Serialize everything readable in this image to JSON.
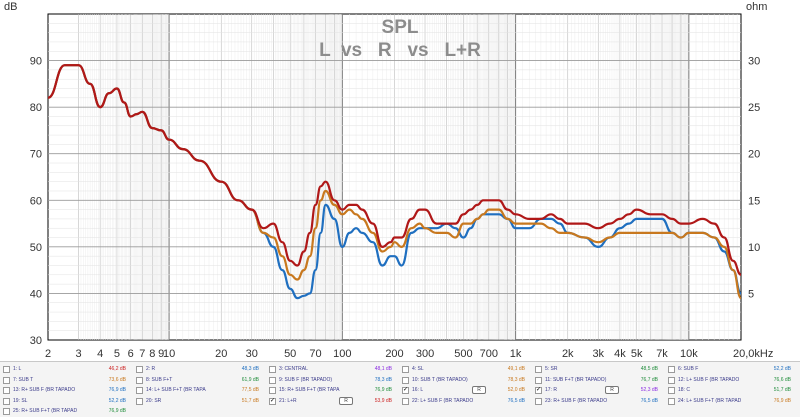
{
  "chart_data": {
    "type": "line",
    "title": "SPL",
    "subtitle": "L  vs   R   vs   L+R",
    "y_left_unit": "dB",
    "y_right_unit": "ohm",
    "x_scale": "log",
    "xlim": [
      2,
      20000
    ],
    "ylim": [
      30,
      100
    ],
    "y_right_lim": [
      0,
      35
    ],
    "grid": true,
    "x_tick_labels": [
      {
        "v": 2,
        "t": "2"
      },
      {
        "v": 3,
        "t": "3"
      },
      {
        "v": 4,
        "t": "4"
      },
      {
        "v": 5,
        "t": "5"
      },
      {
        "v": 6,
        "t": "6"
      },
      {
        "v": 7,
        "t": "7"
      },
      {
        "v": 8,
        "t": "8"
      },
      {
        "v": 9,
        "t": "9"
      },
      {
        "v": 10,
        "t": "10"
      },
      {
        "v": 20,
        "t": "20"
      },
      {
        "v": 30,
        "t": "30"
      },
      {
        "v": 50,
        "t": "50"
      },
      {
        "v": 70,
        "t": "70"
      },
      {
        "v": 100,
        "t": "100"
      },
      {
        "v": 200,
        "t": "200"
      },
      {
        "v": 300,
        "t": "300"
      },
      {
        "v": 500,
        "t": "500"
      },
      {
        "v": 700,
        "t": "700"
      },
      {
        "v": 1000,
        "t": "1k"
      },
      {
        "v": 2000,
        "t": "2k"
      },
      {
        "v": 3000,
        "t": "3k"
      },
      {
        "v": 4000,
        "t": "4k"
      },
      {
        "v": 5000,
        "t": "5k"
      },
      {
        "v": 7000,
        "t": "7k"
      },
      {
        "v": 10000,
        "t": "10k"
      },
      {
        "v": 20000,
        "t": "20,0kHz"
      }
    ],
    "y_left_ticks": [
      40,
      50,
      60,
      70,
      80,
      90
    ],
    "y_right_ticks": [
      5,
      10,
      15,
      20,
      25,
      30
    ],
    "series": [
      {
        "color": "#1f6fc0",
        "x": [
          2,
          2.5,
          3,
          3.5,
          4,
          4.5,
          5,
          5.5,
          6,
          6.5,
          7,
          8,
          9,
          10,
          12,
          15,
          20,
          25,
          30,
          35,
          40,
          45,
          50,
          55,
          60,
          65,
          70,
          75,
          80,
          90,
          100,
          110,
          120,
          130,
          150,
          170,
          190,
          200,
          220,
          250,
          280,
          300,
          350,
          400,
          450,
          500,
          550,
          600,
          650,
          700,
          800,
          900,
          1000,
          1200,
          1400,
          1600,
          1800,
          2000,
          2500,
          3000,
          3500,
          4000,
          4500,
          5000,
          6000,
          7000,
          8000,
          9000,
          10000,
          12000,
          14000,
          16000,
          18000,
          20000
        ],
        "y": [
          82,
          89,
          89,
          85,
          80,
          83,
          84,
          81,
          78,
          78.5,
          79,
          75.5,
          75,
          73,
          71,
          68.5,
          64,
          60,
          58,
          53,
          50,
          45,
          41,
          39,
          39.5,
          40,
          45,
          53,
          59,
          56,
          50,
          53,
          54,
          53,
          51,
          46,
          48,
          48,
          46,
          53,
          54,
          54,
          54,
          55,
          54,
          52,
          54,
          56,
          57,
          57,
          57,
          56,
          54,
          54,
          56,
          56,
          55,
          53,
          52,
          50,
          52,
          54,
          55,
          56,
          56,
          56,
          53,
          52,
          53,
          53,
          52,
          49,
          45,
          40
        ]
      },
      {
        "color": "#c8781e",
        "x": [
          2,
          2.5,
          3,
          3.5,
          4,
          4.5,
          5,
          5.5,
          6,
          6.5,
          7,
          8,
          9,
          10,
          12,
          15,
          20,
          25,
          30,
          35,
          40,
          45,
          50,
          55,
          60,
          65,
          70,
          75,
          80,
          90,
          100,
          110,
          120,
          130,
          150,
          170,
          190,
          200,
          220,
          250,
          280,
          300,
          350,
          400,
          450,
          500,
          550,
          600,
          650,
          700,
          800,
          900,
          1000,
          1200,
          1400,
          1600,
          1800,
          2000,
          2500,
          3000,
          3500,
          4000,
          4500,
          5000,
          6000,
          7000,
          8000,
          9000,
          10000,
          12000,
          14000,
          16000,
          18000,
          20000
        ],
        "y": [
          82,
          89,
          89,
          85,
          80,
          83,
          84,
          81,
          78,
          78.5,
          79,
          75.5,
          75,
          73,
          71,
          68.5,
          64,
          60,
          58,
          53,
          52,
          48,
          44,
          43,
          45,
          48,
          54,
          60,
          62,
          59,
          57,
          58,
          57,
          56,
          53,
          49,
          50,
          51,
          50,
          54,
          55,
          54,
          53,
          53,
          52,
          55,
          55,
          56,
          57,
          58,
          58,
          56,
          55,
          55,
          55,
          54,
          53,
          53,
          52,
          51,
          52,
          53,
          53,
          53,
          53,
          53,
          53,
          52,
          53,
          53,
          52,
          50,
          45,
          39
        ]
      },
      {
        "color": "#b01818",
        "x": [
          2,
          2.5,
          3,
          3.5,
          4,
          4.5,
          5,
          5.5,
          6,
          6.5,
          7,
          8,
          9,
          10,
          12,
          15,
          20,
          25,
          30,
          35,
          40,
          45,
          50,
          55,
          60,
          65,
          70,
          75,
          80,
          90,
          100,
          110,
          120,
          130,
          150,
          170,
          190,
          200,
          220,
          250,
          280,
          300,
          350,
          400,
          450,
          500,
          550,
          600,
          650,
          700,
          800,
          900,
          1000,
          1200,
          1400,
          1600,
          1800,
          2000,
          2500,
          3000,
          3500,
          4000,
          4500,
          5000,
          6000,
          7000,
          8000,
          9000,
          10000,
          12000,
          14000,
          16000,
          18000,
          20000
        ],
        "y": [
          82,
          89,
          89,
          85,
          80,
          83,
          84,
          81,
          78,
          78.5,
          79,
          75.5,
          75,
          73,
          71,
          68.5,
          64,
          60,
          58,
          54,
          55,
          51,
          47,
          46,
          49,
          53,
          59,
          63,
          64,
          60,
          58,
          59,
          59,
          58,
          55,
          50,
          51,
          52,
          52,
          56,
          58,
          58,
          55,
          55,
          55,
          57,
          58,
          59,
          60,
          60,
          60,
          58,
          57,
          56,
          56,
          57,
          56,
          55,
          55,
          54,
          55,
          56,
          57,
          58,
          57,
          57,
          56,
          55,
          55,
          56,
          55,
          52,
          47,
          44
        ]
      }
    ]
  },
  "legend": {
    "items": [
      {
        "label": "1: L",
        "value": "46,2 dB",
        "color": "#cc2222",
        "checked": false
      },
      {
        "label": "2: R",
        "value": "48,3 dB",
        "color": "#1f6fc0",
        "checked": false
      },
      {
        "label": "3: CENTRAL",
        "value": "48,1 dB",
        "color": "#8a2be2",
        "checked": false
      },
      {
        "label": "4: SL",
        "value": "49,1 dB",
        "color": "#c8781e",
        "checked": false
      },
      {
        "label": "5: SR",
        "value": "48,5 dB",
        "color": "#1f8c3a",
        "checked": false
      },
      {
        "label": "6: SUB F",
        "value": "52,2 dB",
        "color": "#1f6fc0",
        "checked": false
      },
      {
        "label": "7: SUB T",
        "value": "73,6 dB",
        "color": "#c8781e",
        "checked": false
      },
      {
        "label": "8: SUB F+T",
        "value": "61,9 dB",
        "color": "#1f8c3a",
        "checked": false
      },
      {
        "label": "9: SUB F (BR TAPADO)",
        "value": "78,3 dB",
        "color": "#1f6fc0",
        "checked": false
      },
      {
        "label": "10: SUB T (BR TAPADO)",
        "value": "78,3 dB",
        "color": "#c8781e",
        "checked": false
      },
      {
        "label": "11: SUB F+T (BR TAPADO)",
        "value": "76,7 dB",
        "color": "#1f8c3a",
        "checked": false
      },
      {
        "label": "12: L+ SUB F (BR TAPADO",
        "value": "76,6 dB",
        "color": "#1f8c3a",
        "checked": false
      },
      {
        "label": "13: R+ SUB F (BR TAPADO",
        "value": "76,9 dB",
        "color": "#1f6fc0",
        "checked": false
      },
      {
        "label": "14: L+ SUB F+T (BR TAPA",
        "value": "77,5 dB",
        "color": "#c8781e",
        "checked": false
      },
      {
        "label": "15: R+ SUB F+T (BR TAPA",
        "value": "76,9 dB",
        "color": "#1f8c3a",
        "checked": false
      },
      {
        "label": "16: L",
        "value": "52,0 dB",
        "color": "#c8781e",
        "checked": true,
        "marker": "R"
      },
      {
        "label": "17: R",
        "value": "52,3 dB",
        "color": "#8a2be2",
        "checked": true,
        "marker": "R"
      },
      {
        "label": "18: C",
        "value": "51,7 dB",
        "color": "#1f8c3a",
        "checked": false
      },
      {
        "label": "19: SL",
        "value": "52,2 dB",
        "color": "#1f6fc0",
        "checked": false
      },
      {
        "label": "20: SR",
        "value": "51,7 dB",
        "color": "#c8781e",
        "checked": false
      },
      {
        "label": "21: L+R",
        "value": "53,9 dB",
        "color": "#cc2222",
        "checked": true,
        "marker": "R"
      },
      {
        "label": "22: L+ SUB F (BR TAPADO",
        "value": "76,5 dB",
        "color": "#1f6fc0",
        "checked": false
      },
      {
        "label": "23: R+ SUB F (BR TAPADO",
        "value": "76,5 dB",
        "color": "#1f6fc0",
        "checked": false
      },
      {
        "label": "24: L+ SUB F+T (BR TAPAD",
        "value": "76,9 dB",
        "color": "#c8781e",
        "checked": false
      },
      {
        "label": "25: R+ SUB F+T (BR TAPAD",
        "value": "76,9 dB",
        "color": "#1f8c3a",
        "checked": false
      }
    ]
  }
}
